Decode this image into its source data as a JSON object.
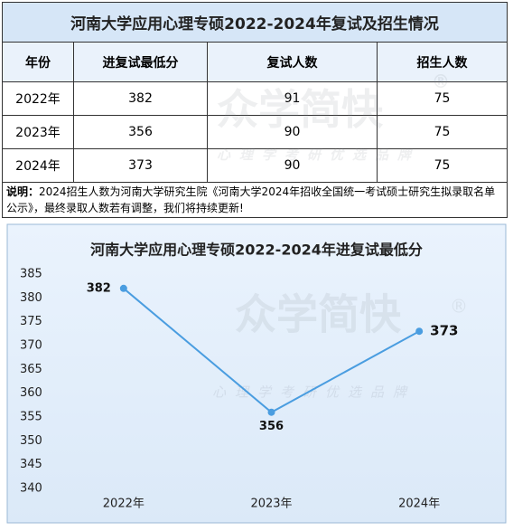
{
  "table": {
    "title": "河南大学应用心理专硕2022-2024年复试及招生情况",
    "header": [
      "年份",
      "进复试最低分",
      "复试人数",
      "招生人数"
    ],
    "rows": [
      [
        "2022年",
        382,
        91,
        75
      ],
      [
        "2023年",
        356,
        90,
        75
      ],
      [
        "2024年",
        373,
        90,
        75
      ]
    ]
  },
  "note": {
    "label": "说明：",
    "text": "2024招生人数为河南大学研究生院《河南大学2024年招收全国统一考试硕士研究生拟录取名单公示》，最终录取人数若有调整，我们将持续更新!"
  },
  "watermark": {
    "brand": "众学简快",
    "mark": "®",
    "slogan": "心理学考研优选品牌"
  },
  "chart_data": {
    "type": "line",
    "title": "河南大学应用心理专硕2022-2024年进复试最低分",
    "categories": [
      "2022年",
      "2023年",
      "2024年"
    ],
    "values": [
      382,
      356,
      373
    ],
    "color": "#4a9de0",
    "ylim": [
      340,
      385
    ],
    "yticks": [
      340,
      345,
      350,
      355,
      360,
      365,
      370,
      375,
      380,
      385
    ],
    "grid": false
  }
}
